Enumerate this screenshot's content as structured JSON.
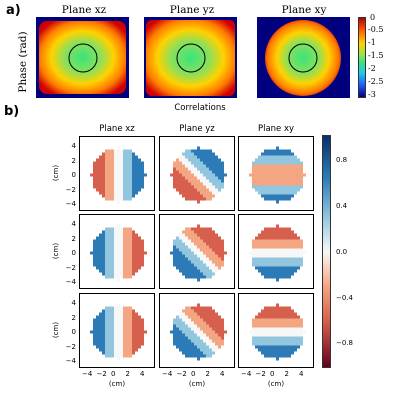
{
  "panel_a": {
    "label": "a)",
    "ylabel": "Phase (rad)",
    "titles": [
      "Plane xz",
      "Plane yz",
      "Plane xy"
    ],
    "colorbar": {
      "ticks": [
        "0",
        "-0.5",
        "-1",
        "-1.5",
        "-2",
        "-2.5",
        "-3"
      ],
      "colors": {
        "high": "#b80000",
        "mid_high": "#ffd200",
        "mid": "#3be37a",
        "mid_low": "#1ec8ee",
        "low": "#00007f"
      }
    }
  },
  "panel_b": {
    "label": "b)",
    "suptitle": "Correlations",
    "titles": [
      "Plane xz",
      "Plane yz",
      "Plane xy"
    ],
    "ylabel": "(cm)",
    "xlabel": "(cm)",
    "ticks": [
      "4",
      "2",
      "0",
      "−2",
      "−4"
    ],
    "xticks": [
      "−4",
      "−2",
      "0",
      "2",
      "4"
    ],
    "colorbar": {
      "ticks": [
        "0.8",
        "0.4",
        "0.0",
        "−0.4",
        "−0.8"
      ],
      "colors": {
        "pos": "#08306b",
        "zero": "#f7f7f7",
        "neg": "#67001f"
      }
    }
  },
  "chart_data": [
    {
      "type": "heatmap",
      "title": "Phase (rad)",
      "subplots": [
        "Plane xz",
        "Plane yz",
        "Plane xy"
      ],
      "ylabel": "Phase (rad)",
      "colorbar_range": [
        -3,
        0
      ],
      "colorbar_ticks": [
        0,
        -0.5,
        -1,
        -1.5,
        -2,
        -2.5,
        -3
      ]
    },
    {
      "type": "heatmap",
      "title": "Correlations",
      "columns": [
        "Plane xz",
        "Plane yz",
        "Plane xy"
      ],
      "rows": 3,
      "x_range": [
        -5,
        5
      ],
      "y_range": [
        -5,
        5
      ],
      "xticks": [
        -4,
        -2,
        0,
        2,
        4
      ],
      "yticks": [
        -4,
        -2,
        0,
        2,
        4
      ],
      "xlabel": "(cm)",
      "ylabel": "(cm)",
      "colorbar_range": [
        -1,
        1
      ],
      "colorbar_ticks": [
        0.8,
        0.4,
        0.0,
        -0.4,
        -0.8
      ],
      "patterns": [
        [
          "neg-left/pos-right",
          "pos-top-right/neg-bottom-left",
          "pos-top/neg-middle/pos-bottom"
        ],
        [
          "pos-left/neg-right",
          "neg-top-right/pos-bottom-left",
          "neg-top/pos-bottom"
        ],
        [
          "pos-left/neg-right",
          "neg-top-right/pos-bottom-left",
          "neg-top/pos-bottom"
        ]
      ]
    }
  ]
}
